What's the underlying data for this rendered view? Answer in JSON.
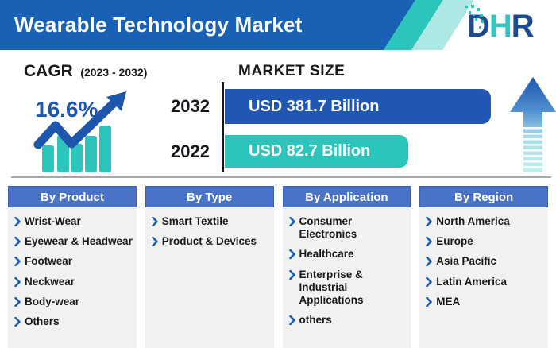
{
  "header": {
    "title": "Wearable Technology Market",
    "logo": {
      "d": "D",
      "h": "H",
      "r": "R"
    }
  },
  "cagr": {
    "label": "CAGR",
    "period": "(2023 - 2032)",
    "value": "16.6%"
  },
  "market_size": {
    "title": "MARKET SIZE",
    "bars": [
      {
        "year": "2032",
        "label": "USD 381.7 Billion"
      },
      {
        "year": "2022",
        "label": "USD 82.7 Billion"
      }
    ]
  },
  "segments": [
    {
      "title": "By Product",
      "items": [
        "Wrist-Wear",
        "Eyewear & Headwear",
        "Footwear",
        "Neckwear",
        "Body-wear",
        "Others"
      ]
    },
    {
      "title": "By Type",
      "items": [
        "Smart Textile",
        "Product & Devices"
      ]
    },
    {
      "title": "By Application",
      "items": [
        "Consumer Electronics",
        "Healthcare",
        "Enterprise & Industrial Applications",
        "others"
      ]
    },
    {
      "title": "By Region",
      "items": [
        "North America",
        "Europe",
        "Asia Pacific",
        "Latin America",
        "MEA"
      ]
    }
  ],
  "icons": {
    "growth_chart": "bar-chart-with-trend-up-arrow",
    "up_arrow": "striped-gradient-up-arrow",
    "bullet": "chevron-right"
  },
  "colors": {
    "header_blue": "#1961b5",
    "bar_dark_blue": "#1f57b2",
    "teal": "#2cc5bb",
    "light_teal": "#aee8e4",
    "segment_header_blue": "#4a73c7",
    "cagr_value_blue": "#1e56ad",
    "logo_navy": "#1d4a8c"
  },
  "chart_data": {
    "type": "bar",
    "orientation": "horizontal",
    "title": "Wearable Technology Market Size",
    "categories": [
      "2022",
      "2032"
    ],
    "values": [
      82.7,
      381.7
    ],
    "unit": "USD Billion",
    "value_labels": [
      "USD 82.7 Billion",
      "USD 381.7 Billion"
    ],
    "cagr_percent": 16.6,
    "cagr_period": "2023 - 2032",
    "legend": false,
    "grid": false
  }
}
